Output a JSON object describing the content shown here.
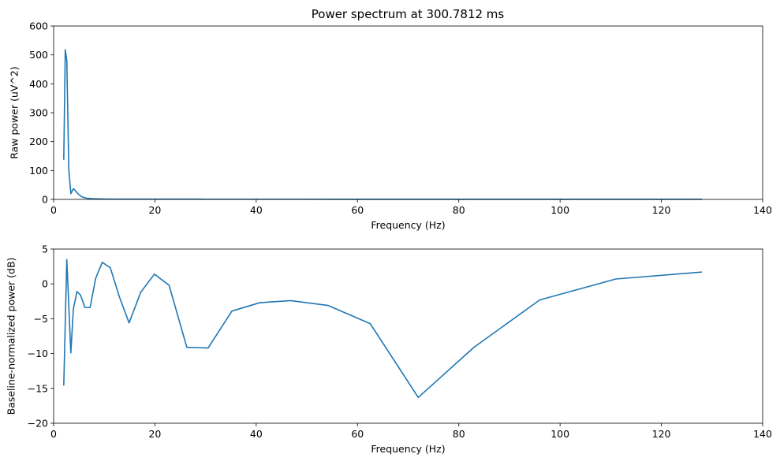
{
  "chart_data": [
    {
      "type": "line",
      "title": "Power spectrum at 300.7812 ms",
      "xlabel": "Frequency (Hz)",
      "ylabel": "Raw power (uV^2)",
      "xlim": [
        0,
        140
      ],
      "ylim": [
        0,
        600
      ],
      "xticks": [
        0,
        20,
        40,
        60,
        80,
        100,
        120,
        140
      ],
      "yticks": [
        0,
        100,
        200,
        300,
        400,
        500,
        600
      ],
      "grid": false,
      "color": "#1f77b4",
      "x": [
        2.0,
        2.3,
        2.6,
        3.0,
        3.4,
        3.9,
        4.4,
        5.0,
        5.7,
        6.5,
        7.5,
        8.5,
        10,
        12,
        15,
        20,
        30,
        40,
        60,
        80,
        100,
        128
      ],
      "y": [
        137,
        518,
        480,
        103,
        20,
        37,
        28,
        16,
        8,
        4,
        2.5,
        1.8,
        1.3,
        1.0,
        0.9,
        0.8,
        0.7,
        0.7,
        0.6,
        0.6,
        0.6,
        0.6
      ]
    },
    {
      "type": "line",
      "title": "",
      "xlabel": "Frequency (Hz)",
      "ylabel": "Baseline-normalized power (dB)",
      "xlim": [
        0,
        140
      ],
      "ylim": [
        -20,
        5
      ],
      "xticks": [
        0,
        20,
        40,
        60,
        80,
        100,
        120,
        140
      ],
      "yticks": [
        -20,
        -15,
        -10,
        -5,
        0,
        5
      ],
      "grid": false,
      "color": "#1f77b4",
      "x": [
        2.0,
        2.6,
        3.4,
        3.9,
        4.6,
        5.3,
        6.2,
        7.2,
        8.3,
        9.6,
        11.2,
        13.0,
        14.9,
        17.2,
        19.9,
        22.8,
        26.3,
        30.5,
        35.2,
        40.7,
        46.8,
        54.2,
        62.5,
        72.0,
        83.0,
        96.0,
        111.0,
        128.0
      ],
      "y": [
        -14.6,
        3.5,
        -9.9,
        -3.6,
        -1.1,
        -1.6,
        -3.4,
        -3.4,
        0.8,
        3.1,
        2.3,
        -1.9,
        -5.6,
        -1.2,
        1.4,
        -0.2,
        -9.1,
        -9.2,
        -3.9,
        -2.7,
        -2.4,
        -3.1,
        -5.7,
        -16.3,
        -9.1,
        -2.3,
        0.7,
        1.7
      ]
    }
  ]
}
